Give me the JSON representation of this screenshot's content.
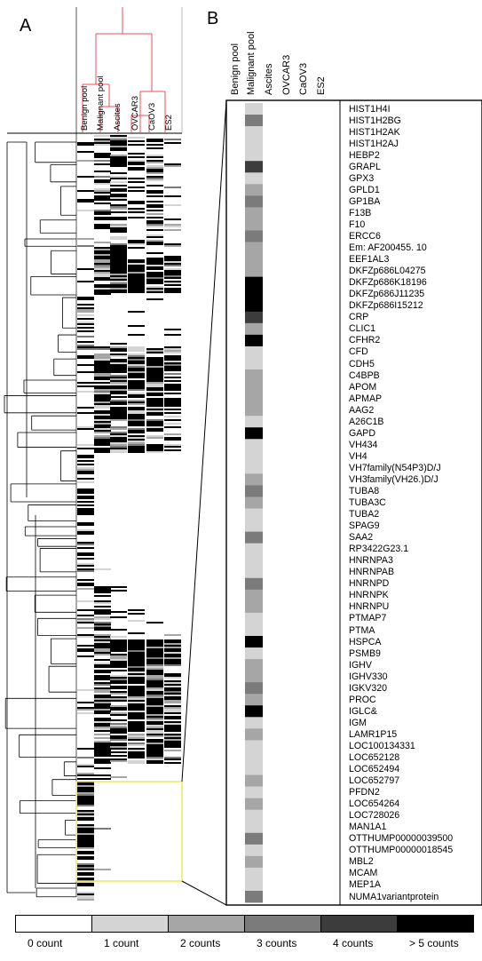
{
  "panels": {
    "a": "A",
    "b": "B"
  },
  "dendrogram_columns": [
    "Benign pool",
    "Malignant pool",
    "Ascites",
    "OVCAR3",
    "CaOV3",
    "ES2"
  ],
  "panel_b_columns": [
    "Benign pool",
    "Malignant pool",
    "Ascites",
    "OVCAR3",
    "CaOV3",
    "ES2"
  ],
  "genes": [
    {
      "name": "HIST1H4I",
      "level": 1
    },
    {
      "name": "HIST1H2BG",
      "level": 3
    },
    {
      "name": "HIST1H2AK",
      "level": 1
    },
    {
      "name": "HIST1H2AJ",
      "level": 1
    },
    {
      "name": "HEBP2",
      "level": 1
    },
    {
      "name": "GRAPL",
      "level": 4
    },
    {
      "name": "GPX3",
      "level": 1
    },
    {
      "name": "GPLD1",
      "level": 2
    },
    {
      "name": "GP1BA",
      "level": 3
    },
    {
      "name": "F13B",
      "level": 2
    },
    {
      "name": "F10",
      "level": 2
    },
    {
      "name": "ERCC6",
      "level": 3
    },
    {
      "name": "Em: AF200455. 10",
      "level": 2
    },
    {
      "name": "EEF1AL3",
      "level": 2
    },
    {
      "name": "DKFZp686L04275",
      "level": 2
    },
    {
      "name": "DKFZp686K18196",
      "level": 5
    },
    {
      "name": "DKFZp686J11235",
      "level": 5
    },
    {
      "name": "DKFZp686I15212",
      "level": 5
    },
    {
      "name": "CRP",
      "level": 4
    },
    {
      "name": "CLIC1",
      "level": 2
    },
    {
      "name": "CFHR2",
      "level": 5
    },
    {
      "name": "CFD",
      "level": 1
    },
    {
      "name": "CDH5",
      "level": 1
    },
    {
      "name": "C4BPB",
      "level": 2
    },
    {
      "name": "APOM",
      "level": 2
    },
    {
      "name": "APMAP",
      "level": 2
    },
    {
      "name": "AAG2",
      "level": 2
    },
    {
      "name": "A26C1B",
      "level": 1
    },
    {
      "name": "GAPD",
      "level": 5
    },
    {
      "name": "VH434",
      "level": 1
    },
    {
      "name": "VH4",
      "level": 1
    },
    {
      "name": "VH7family(N54P3)D/J",
      "level": 1
    },
    {
      "name": "VH3family(VH26.)D/J",
      "level": 2
    },
    {
      "name": "TUBA8",
      "level": 3
    },
    {
      "name": "TUBA3C",
      "level": 2
    },
    {
      "name": "TUBA2",
      "level": 1
    },
    {
      "name": "SPAG9",
      "level": 1
    },
    {
      "name": "SAA2",
      "level": 3
    },
    {
      "name": "RP3422G23.1",
      "level": 1
    },
    {
      "name": "HNRNPA3",
      "level": 1
    },
    {
      "name": "HNRNPAB",
      "level": 1
    },
    {
      "name": "HNRNPD",
      "level": 3
    },
    {
      "name": "HNRNPK",
      "level": 2
    },
    {
      "name": "HNRNPU",
      "level": 2
    },
    {
      "name": "PTMAP7",
      "level": 1
    },
    {
      "name": "PTMA",
      "level": 1
    },
    {
      "name": "HSPCA",
      "level": 5
    },
    {
      "name": "PSMB9",
      "level": 1
    },
    {
      "name": "IGHV",
      "level": 2
    },
    {
      "name": "IGHV330",
      "level": 2
    },
    {
      "name": "IGKV320",
      "level": 3
    },
    {
      "name": "PROC",
      "level": 2
    },
    {
      "name": "IGLC&",
      "level": 5
    },
    {
      "name": "IGM",
      "level": 1
    },
    {
      "name": "LAMR1P15",
      "level": 2
    },
    {
      "name": "LOC100134331",
      "level": 1
    },
    {
      "name": "LOC652128",
      "level": 1
    },
    {
      "name": "LOC652494",
      "level": 1
    },
    {
      "name": "LOC652797",
      "level": 2
    },
    {
      "name": "PFDN2",
      "level": 1
    },
    {
      "name": "LOC654264",
      "level": 2
    },
    {
      "name": "LOC728026",
      "level": 1
    },
    {
      "name": "MAN1A1",
      "level": 1
    },
    {
      "name": "OTTHUMP00000039500",
      "level": 3
    },
    {
      "name": "OTTHUMP00000018545",
      "level": 1
    },
    {
      "name": "MBL2",
      "level": 2
    },
    {
      "name": "MCAM",
      "level": 1
    },
    {
      "name": "MEP1A",
      "level": 1
    },
    {
      "name": "NUMA1variantprotein",
      "level": 3
    }
  ],
  "legend": [
    {
      "label": "0 count",
      "color": "#ffffff"
    },
    {
      "label": "1 count",
      "color": "#d4d4d4"
    },
    {
      "label": "2 counts",
      "color": "#a6a6a6"
    },
    {
      "label": "3 counts",
      "color": "#7b7b7b"
    },
    {
      "label": "4 counts",
      "color": "#3c3c3c"
    },
    {
      "label": "> 5 counts",
      "color": "#000000"
    }
  ],
  "colors": {
    "dendrogram_top": "#e8505b",
    "highlight_box": "#f2e55c",
    "outline": "#000000"
  }
}
